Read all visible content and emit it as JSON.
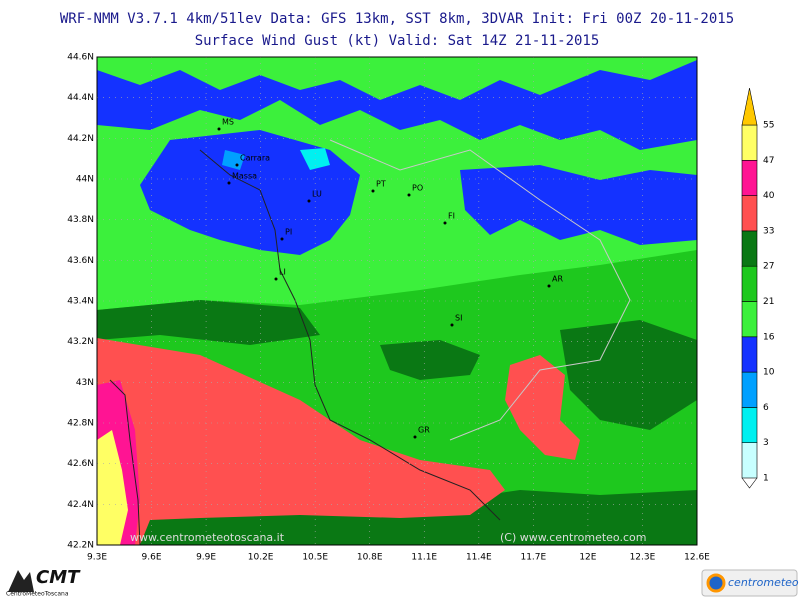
{
  "header": {
    "line1": "WRF-NMM V3.7.1 4km/51lev  Data: GFS 13km, SST 8km, 3DVAR  Init: Fri 00Z 20-11-2015",
    "line2": "Surface Wind Gust (kt)  Valid: Sat 14Z 21-11-2015"
  },
  "map": {
    "lat_labels": [
      "44.6N",
      "44.4N",
      "44.2N",
      "44N",
      "43.8N",
      "43.6N",
      "43.4N",
      "43.2N",
      "43N",
      "42.8N",
      "42.6N",
      "42.4N",
      "42.2N"
    ],
    "lon_labels": [
      "9.3E",
      "9.6E",
      "9.9E",
      "10.2E",
      "10.5E",
      "10.8E",
      "11.1E",
      "11.4E",
      "11.7E",
      "12E",
      "12.3E",
      "12.6E"
    ],
    "cities": [
      "MS",
      "Carrara",
      "Massa",
      "LU",
      "PT",
      "PO",
      "FI",
      "PI",
      "LI",
      "AR",
      "SI",
      "GR"
    ],
    "watermarks": [
      "www.centrometeotoscana.it",
      "(C) www.centrometeo.com"
    ]
  },
  "colorbar": {
    "levels": [
      1,
      3,
      6,
      10,
      16,
      21,
      27,
      33,
      40,
      47,
      55
    ],
    "colors": [
      "#c8ffff",
      "#00f0f0",
      "#00a0ff",
      "#1432ff",
      "#3cf03c",
      "#1ec81e",
      "#0a7814",
      "#ff5050",
      "#ff1493",
      "#ffff64",
      "#ffc800"
    ]
  },
  "logos": {
    "left": "CMT",
    "left_sub": "CentroMeteoToscana",
    "right": "centrometeo"
  }
}
